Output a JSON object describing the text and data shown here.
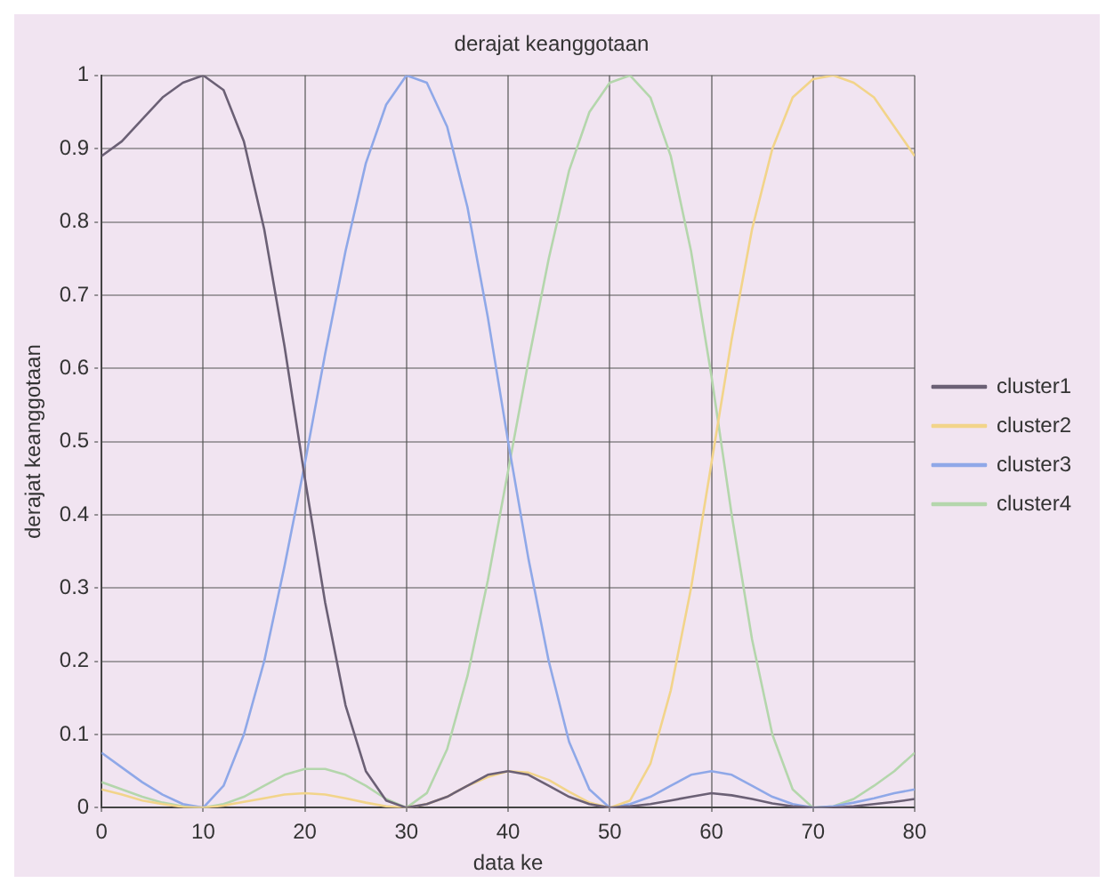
{
  "chart_data": {
    "type": "line",
    "title": "derajat keanggotaan",
    "xlabel": "data ke",
    "ylabel": "derajat keanggotaan",
    "x": [
      0,
      2,
      4,
      6,
      8,
      10,
      12,
      14,
      16,
      18,
      20,
      22,
      24,
      26,
      28,
      30,
      32,
      34,
      36,
      38,
      40,
      42,
      44,
      46,
      48,
      50,
      52,
      54,
      56,
      58,
      60,
      62,
      64,
      66,
      68,
      70,
      72,
      74,
      76,
      78,
      80
    ],
    "xlim": [
      0,
      80
    ],
    "xticks": [
      0,
      10,
      20,
      30,
      40,
      50,
      60,
      70,
      80
    ],
    "ylim": [
      0,
      1
    ],
    "yticks": [
      0,
      0.1,
      0.2,
      0.3,
      0.4,
      0.5,
      0.6,
      0.7,
      0.8,
      0.9,
      1
    ],
    "grid": true,
    "legend": "right",
    "marker": "none",
    "line_style": "solid",
    "series": [
      {
        "name": "cluster1",
        "color": "#6b6075",
        "values": [
          0.89,
          0.91,
          0.94,
          0.97,
          0.99,
          1.0,
          0.98,
          0.91,
          0.79,
          0.63,
          0.45,
          0.28,
          0.14,
          0.05,
          0.01,
          0,
          0.005,
          0.015,
          0.03,
          0.045,
          0.05,
          0.045,
          0.03,
          0.015,
          0.005,
          0,
          0.002,
          0.005,
          0.01,
          0.015,
          0.02,
          0.017,
          0.012,
          0.006,
          0.002,
          0,
          0,
          0.002,
          0.005,
          0.008,
          0.012
        ]
      },
      {
        "name": "cluster2",
        "color": "#f2d48a",
        "values": [
          0.025,
          0.018,
          0.01,
          0.005,
          0.001,
          0,
          0.003,
          0.008,
          0.013,
          0.018,
          0.02,
          0.018,
          0.013,
          0.007,
          0.002,
          0,
          0.005,
          0.015,
          0.03,
          0.042,
          0.05,
          0.048,
          0.038,
          0.022,
          0.007,
          0,
          0.01,
          0.06,
          0.16,
          0.3,
          0.47,
          0.64,
          0.79,
          0.9,
          0.97,
          0.995,
          1.0,
          0.99,
          0.97,
          0.93,
          0.89
        ]
      },
      {
        "name": "cluster3",
        "color": "#8fa8e8",
        "values": [
          0.075,
          0.055,
          0.035,
          0.018,
          0.005,
          0,
          0.03,
          0.1,
          0.2,
          0.33,
          0.47,
          0.62,
          0.76,
          0.88,
          0.96,
          1.0,
          0.99,
          0.93,
          0.82,
          0.67,
          0.5,
          0.34,
          0.2,
          0.09,
          0.025,
          0,
          0.005,
          0.015,
          0.03,
          0.045,
          0.05,
          0.045,
          0.03,
          0.015,
          0.005,
          0,
          0.002,
          0.007,
          0.013,
          0.02,
          0.025
        ]
      },
      {
        "name": "cluster4",
        "color": "#b4d6ac",
        "values": [
          0.035,
          0.025,
          0.015,
          0.007,
          0.002,
          0,
          0.005,
          0.015,
          0.03,
          0.045,
          0.053,
          0.053,
          0.045,
          0.03,
          0.012,
          0,
          0.02,
          0.08,
          0.18,
          0.31,
          0.46,
          0.61,
          0.75,
          0.87,
          0.95,
          0.99,
          1.0,
          0.97,
          0.89,
          0.76,
          0.59,
          0.4,
          0.23,
          0.1,
          0.025,
          0,
          0.002,
          0.012,
          0.03,
          0.05,
          0.075
        ]
      }
    ]
  }
}
